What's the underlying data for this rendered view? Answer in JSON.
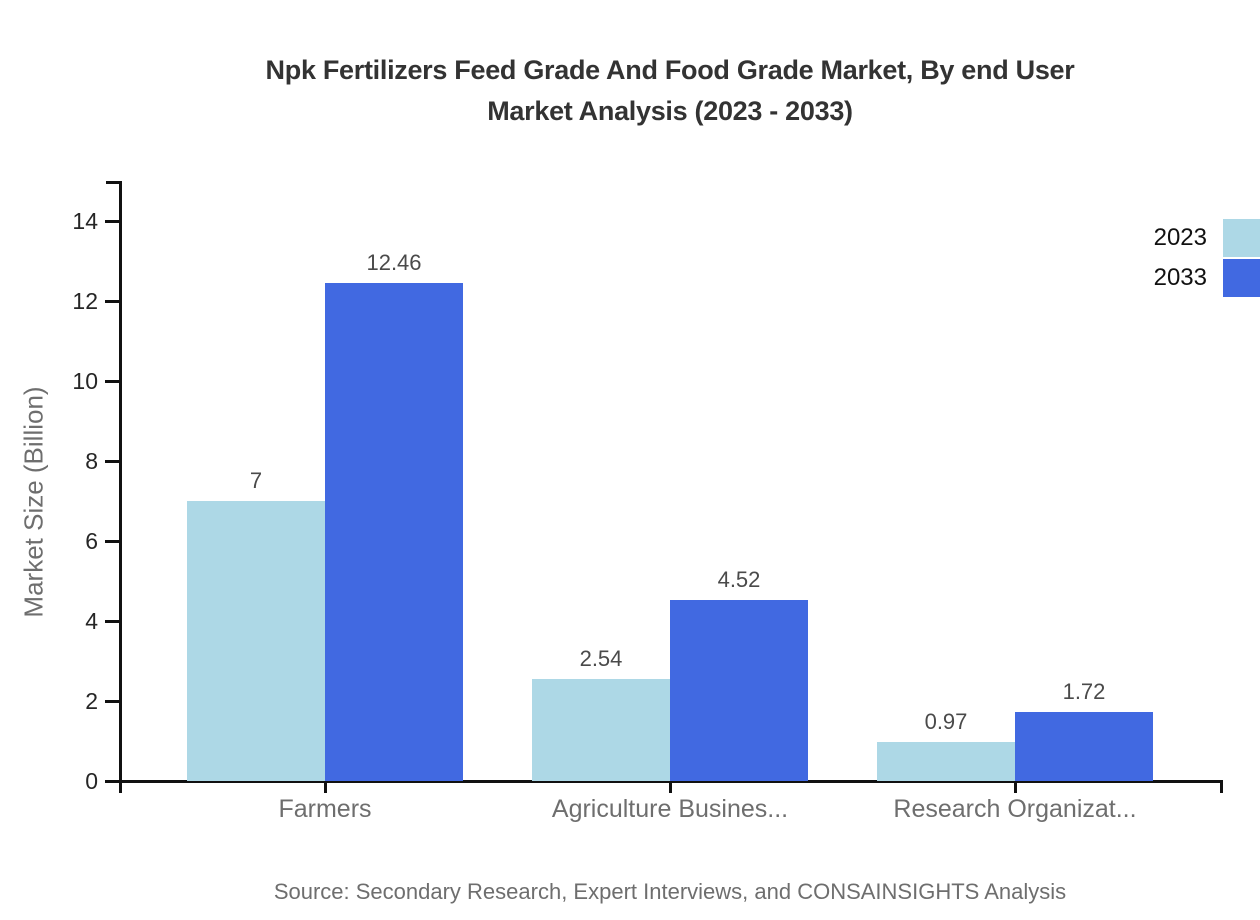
{
  "title": {
    "line1": "Npk Fertilizers Feed Grade And Food Grade Market, By end User",
    "line2": "Market Analysis (2023 - 2033)"
  },
  "source": "Source: Secondary Research, Expert Interviews, and CONSAINSIGHTS Analysis",
  "colors": {
    "series_2023": "#ADD8E6",
    "series_2033": "#4169E1",
    "axis": "#111111",
    "title_text": "#333333",
    "muted_text": "#6E6E6E"
  },
  "chart_data": {
    "type": "bar",
    "title": "Npk Fertilizers Feed Grade And Food Grade Market, By end User Market Analysis (2023 - 2033)",
    "categories": [
      "Farmers",
      "Agriculture Busines...",
      "Research Organizat..."
    ],
    "series": [
      {
        "name": "2023",
        "color": "#ADD8E6",
        "values": [
          7,
          2.54,
          0.97
        ]
      },
      {
        "name": "2033",
        "color": "#4169E1",
        "values": [
          12.46,
          4.52,
          1.72
        ]
      }
    ],
    "value_labels": [
      [
        "7",
        "2.54",
        "0.97"
      ],
      [
        "12.46",
        "4.52",
        "1.72"
      ]
    ],
    "xlabel": "",
    "ylabel": "Market Size (Billion)",
    "ylim": [
      0,
      15
    ],
    "yticks": [
      0,
      2,
      4,
      6,
      8,
      10,
      12,
      14
    ],
    "grid": false,
    "legend_position": "top-right",
    "legend_entries": [
      "2023",
      "2033"
    ]
  }
}
